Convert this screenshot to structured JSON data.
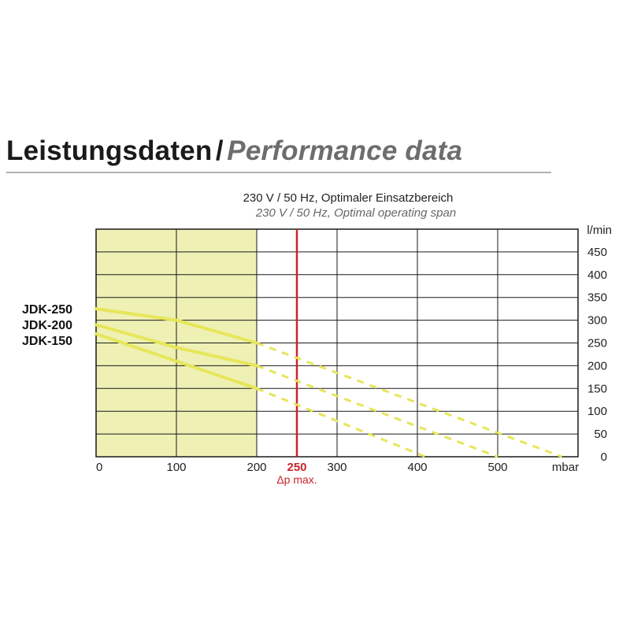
{
  "heading": {
    "title_de": "Leistungsdaten",
    "separator": "/",
    "title_en": "Performance data"
  },
  "chart_data": {
    "type": "line",
    "subtitle_de": "230 V / 50 Hz, Optimaler Einsatzbereich",
    "subtitle_en": "230 V / 50 Hz, Optimal operating span",
    "x_unit": "mbar",
    "y_unit": "l/min",
    "xlim": [
      0,
      600
    ],
    "ylim": [
      0,
      500
    ],
    "x_ticks": [
      "0",
      "100",
      "200",
      "300",
      "400",
      "500"
    ],
    "x_tick_values": [
      0,
      100,
      200,
      300,
      400,
      500
    ],
    "y_ticks": [
      "0",
      "50",
      "100",
      "150",
      "200",
      "250",
      "300",
      "350",
      "400",
      "450"
    ],
    "y_tick_values": [
      0,
      50,
      100,
      150,
      200,
      250,
      300,
      350,
      400,
      450
    ],
    "grid": true,
    "optimal_range": {
      "x_from": 0,
      "x_to": 200,
      "color": "#eef0b4"
    },
    "dp_max": {
      "x": 250,
      "label": "250",
      "caption": "Δp max.",
      "color": "#c9252c"
    },
    "series_color": "#e6e65a",
    "series": [
      {
        "name": "JDK-250",
        "solid": [
          [
            0,
            325
          ],
          [
            100,
            300
          ],
          [
            200,
            250
          ]
        ],
        "dashed": [
          [
            200,
            250
          ],
          [
            580,
            0
          ]
        ]
      },
      {
        "name": "JDK-200",
        "solid": [
          [
            0,
            290
          ],
          [
            100,
            240
          ],
          [
            200,
            200
          ]
        ],
        "dashed": [
          [
            200,
            200
          ],
          [
            500,
            0
          ]
        ]
      },
      {
        "name": "JDK-150",
        "solid": [
          [
            0,
            270
          ],
          [
            100,
            210
          ],
          [
            200,
            150
          ]
        ],
        "dashed": [
          [
            200,
            150
          ],
          [
            410,
            0
          ]
        ]
      }
    ]
  }
}
